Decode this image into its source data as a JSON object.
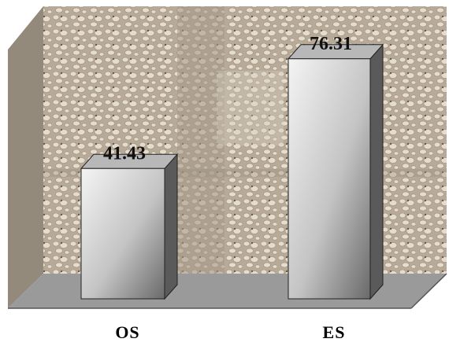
{
  "chart_data": {
    "type": "bar",
    "categories": [
      "OS",
      "ES"
    ],
    "values": [
      41.43,
      76.31
    ],
    "value_labels": [
      "41.43",
      "76.31"
    ],
    "ylim": [
      0,
      80
    ],
    "style": "3d",
    "grid": false,
    "legend": "none"
  },
  "colors": {
    "floor": "#9a9a9a",
    "floor_edge": "#555555",
    "bar_front_light": "#f4f4f4",
    "bar_front_dark": "#6a6a6a",
    "bar_side": "#5a5a5a",
    "bar_top": "#b8b8b8",
    "wall_texture_base": "#b8aa98",
    "wall_texture_light": "#e4dccd",
    "side_wall": "#8a8070"
  }
}
